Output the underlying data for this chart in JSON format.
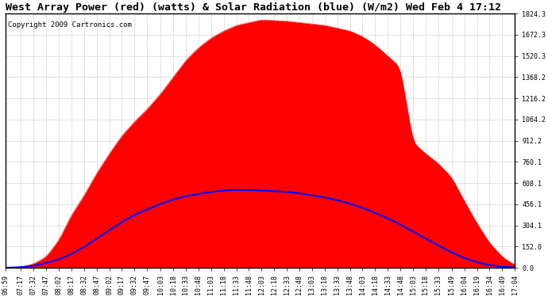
{
  "title": "West Array Power (red) (watts) & Solar Radiation (blue) (W/m2) Wed Feb 4 17:12",
  "copyright": "Copyright 2009 Cartronics.com",
  "bg_color": "#ffffff",
  "plot_bg_color": "#ffffff",
  "grid_color": "#888888",
  "red_fill_color": "#ff0000",
  "blue_line_color": "#0000ff",
  "ymin": 0.0,
  "ymax": 1824.3,
  "yticks": [
    0.0,
    152.0,
    304.1,
    456.1,
    608.1,
    760.1,
    912.2,
    1064.2,
    1216.2,
    1368.2,
    1520.3,
    1672.3,
    1824.3
  ],
  "xtick_labels": [
    "06:59",
    "07:17",
    "07:32",
    "07:47",
    "08:02",
    "08:17",
    "08:32",
    "08:47",
    "09:02",
    "09:17",
    "09:32",
    "09:47",
    "10:03",
    "10:18",
    "10:33",
    "10:48",
    "11:03",
    "11:18",
    "11:33",
    "11:48",
    "12:03",
    "12:18",
    "12:33",
    "12:48",
    "13:03",
    "13:18",
    "13:33",
    "13:48",
    "14:03",
    "14:18",
    "14:33",
    "14:48",
    "15:03",
    "15:18",
    "15:33",
    "15:49",
    "16:04",
    "16:19",
    "16:34",
    "16:49",
    "17:04"
  ],
  "title_fontsize": 9.5,
  "copyright_fontsize": 6.5,
  "tick_fontsize": 6.0,
  "peak_power": 1780,
  "peak_radiation": 560,
  "power_data": [
    0,
    5,
    30,
    80,
    200,
    380,
    520,
    680,
    820,
    950,
    1050,
    1140,
    1250,
    1370,
    1490,
    1580,
    1650,
    1700,
    1740,
    1760,
    1780,
    1775,
    1770,
    1760,
    1750,
    1740,
    1720,
    1700,
    1660,
    1600,
    1520,
    1440,
    900,
    820,
    750,
    650,
    480,
    320,
    180,
    80,
    20
  ],
  "radiation_data": [
    0,
    5,
    15,
    35,
    60,
    100,
    150,
    210,
    270,
    330,
    380,
    420,
    460,
    490,
    515,
    530,
    545,
    555,
    560,
    558,
    555,
    550,
    545,
    535,
    520,
    505,
    485,
    460,
    430,
    395,
    355,
    310,
    260,
    210,
    160,
    110,
    70,
    40,
    20,
    8,
    2
  ]
}
